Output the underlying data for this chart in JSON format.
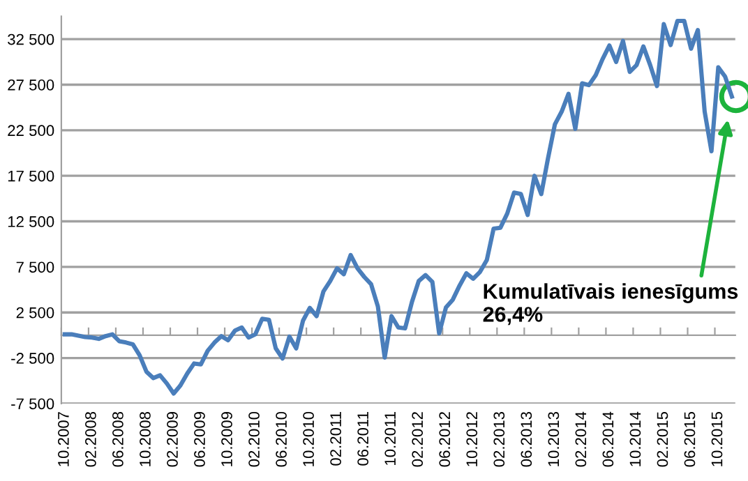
{
  "chart_data": {
    "type": "line",
    "categories": [
      "10.2007",
      null,
      null,
      null,
      "02.2008",
      null,
      null,
      null,
      "06.2008",
      null,
      null,
      null,
      "10.2008",
      null,
      null,
      null,
      "02.2009",
      null,
      null,
      null,
      "06.2009",
      null,
      null,
      null,
      "10.2009",
      null,
      null,
      null,
      "02.2010",
      null,
      null,
      null,
      "06.2010",
      null,
      null,
      null,
      "10.2010",
      null,
      null,
      null,
      "02.2011",
      null,
      null,
      null,
      "06.2011",
      null,
      null,
      null,
      "10.2011",
      null,
      null,
      null,
      "02.2012",
      null,
      null,
      null,
      "06.2012",
      null,
      null,
      null,
      "10.2012",
      null,
      null,
      null,
      "02.2013",
      null,
      null,
      null,
      "06.2013",
      null,
      null,
      null,
      "10.2013",
      null,
      null,
      null,
      "02.2014",
      null,
      null,
      null,
      "06.2014",
      null,
      null,
      null,
      "10.2014",
      null,
      null,
      null,
      "02.2015",
      null,
      null,
      null,
      "06.2015",
      null,
      null,
      null,
      "10.2015",
      null,
      null
    ],
    "series": [
      {
        "color": "#4a7ebb",
        "values": [
          100,
          100,
          -50,
          -200,
          -250,
          -400,
          -100,
          100,
          -650,
          -800,
          -1000,
          -2200,
          -4000,
          -4700,
          -4400,
          -5300,
          -6400,
          -5500,
          -4200,
          -3100,
          -3200,
          -1700,
          -800,
          -100,
          -550,
          500,
          850,
          -250,
          100,
          1800,
          1700,
          -1450,
          -2550,
          -150,
          -1450,
          1600,
          3000,
          2100,
          4800,
          5950,
          7350,
          6700,
          8800,
          7350,
          6400,
          5600,
          3150,
          -2450,
          2100,
          850,
          750,
          3650,
          5950,
          6600,
          5850,
          200,
          3050,
          3900,
          5450,
          6800,
          6200,
          6950,
          8250,
          11700,
          11800,
          13350,
          15650,
          15500,
          13200,
          17500,
          15500,
          19450,
          23150,
          24550,
          26500,
          22650,
          27650,
          27450,
          28550,
          30300,
          31800,
          30000,
          32300,
          28900,
          29650,
          31700,
          29650,
          27350,
          34150,
          31850,
          34500,
          34500,
          31450,
          33500,
          24550,
          20200,
          29400,
          28400,
          26200
        ]
      }
    ],
    "ylim": [
      -7500,
      35000
    ],
    "yticks": [
      {
        "value": -7500,
        "label": "-7 500"
      },
      {
        "value": -2500,
        "label": "-2 500"
      },
      {
        "value": 2500,
        "label": "2 500"
      },
      {
        "value": 7500,
        "label": "7 500"
      },
      {
        "value": 12500,
        "label": "12 500"
      },
      {
        "value": 17500,
        "label": "17 500"
      },
      {
        "value": 22500,
        "label": "22 500"
      },
      {
        "value": 27500,
        "label": "27 500"
      },
      {
        "value": 32500,
        "label": "32 500"
      }
    ],
    "grid": "y",
    "annotations": [
      {
        "text": "Kumulatīvais ienesīgums\n26,4%"
      }
    ]
  }
}
